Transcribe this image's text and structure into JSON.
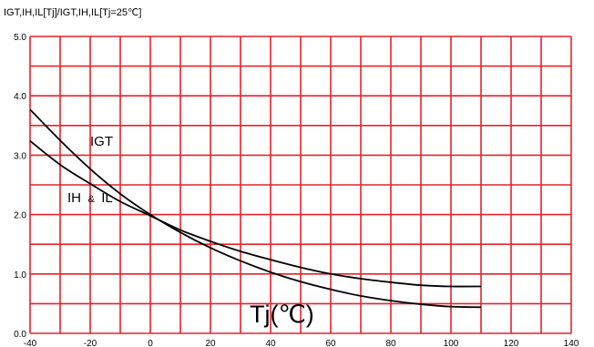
{
  "chart_data": {
    "type": "line",
    "title": "",
    "ylabel_main": "IGT,IH,IL[Tj]/IGT,IH,IL[Tj=25℃]",
    "xlabel": "Tj(℃)",
    "xlim": [
      -40,
      140
    ],
    "ylim": [
      0,
      5.0
    ],
    "grid": true,
    "grid_color": "#e8222a",
    "line_color": "#000000",
    "x_minor_step": 10,
    "y_minor_step": 0.5,
    "x_ticks": [
      -40,
      -20,
      0,
      20,
      40,
      60,
      80,
      100,
      120,
      140
    ],
    "x_tick_labels": [
      "-40",
      "-20",
      "0",
      "20",
      "40",
      "60",
      "80",
      "100",
      "120",
      "140"
    ],
    "y_ticks": [
      0,
      1.0,
      2.0,
      3.0,
      4.0,
      5.0
    ],
    "y_tick_labels": [
      "0.0",
      "1.0",
      "2.0",
      "3.0",
      "4.0",
      "5.0"
    ],
    "annotations": {
      "igt": "IGT",
      "ih_il_main1": "IH",
      "ih_il_amp": "&",
      "ih_il_main2": "IL"
    },
    "series": [
      {
        "key": "igt",
        "x": [
          -40,
          -30,
          -20,
          -10,
          0,
          10,
          20,
          30,
          40,
          50,
          60,
          70,
          80,
          90,
          100,
          110
        ],
        "y": [
          3.77,
          3.25,
          2.77,
          2.35,
          2.0,
          1.7,
          1.44,
          1.22,
          1.03,
          0.87,
          0.74,
          0.63,
          0.55,
          0.49,
          0.45,
          0.44
        ]
      },
      {
        "key": "ih_il",
        "x": [
          -40,
          -30,
          -20,
          -10,
          0,
          10,
          20,
          30,
          40,
          50,
          60,
          70,
          80,
          90,
          100,
          110
        ],
        "y": [
          3.24,
          2.84,
          2.52,
          2.22,
          1.98,
          1.74,
          1.55,
          1.38,
          1.24,
          1.11,
          1.0,
          0.92,
          0.86,
          0.81,
          0.79,
          0.79
        ]
      }
    ]
  }
}
